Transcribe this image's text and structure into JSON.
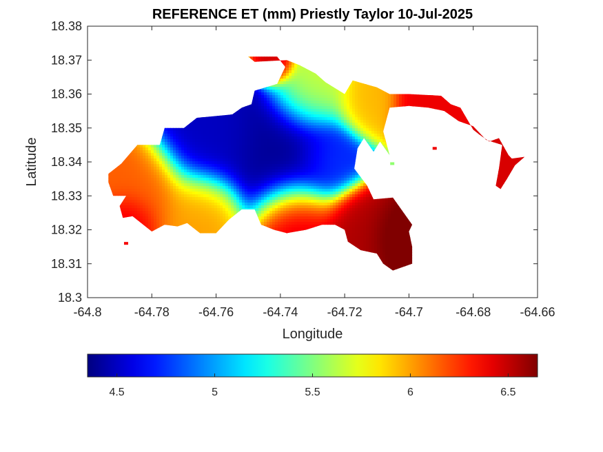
{
  "chart_data": {
    "type": "heatmap",
    "title": "REFERENCE ET (mm) Priestly Taylor 10-Jul-2025",
    "xlabel": "Longitude",
    "ylabel": "Latitude",
    "xlim": [
      -64.8,
      -64.66
    ],
    "ylim": [
      18.3,
      18.38
    ],
    "xticks": [
      -64.8,
      -64.78,
      -64.76,
      -64.74,
      -64.72,
      -64.7,
      -64.68,
      -64.66
    ],
    "xtick_labels": [
      "-64.8",
      "-64.78",
      "-64.76",
      "-64.74",
      "-64.72",
      "-64.7",
      "-64.68",
      "-64.66"
    ],
    "yticks": [
      18.3,
      18.31,
      18.32,
      18.33,
      18.34,
      18.35,
      18.36,
      18.37,
      18.38
    ],
    "ytick_labels": [
      "18.3",
      "18.31",
      "18.32",
      "18.33",
      "18.34",
      "18.35",
      "18.36",
      "18.37",
      "18.38"
    ],
    "colormap": "jet",
    "clim": [
      4.35,
      6.65
    ],
    "colorbar": {
      "orientation": "horizontal",
      "ticks": [
        4.5,
        5,
        5.5,
        6,
        6.5
      ],
      "tick_labels": [
        "4.5",
        "5",
        "5.5",
        "6",
        "6.5"
      ]
    },
    "grid": false,
    "region_outline": [
      [
        -64.7935,
        18.3365
      ],
      [
        -64.7895,
        18.3395
      ],
      [
        -64.7845,
        18.345
      ],
      [
        -64.7775,
        18.345
      ],
      [
        -64.776,
        18.35
      ],
      [
        -64.77,
        18.35
      ],
      [
        -64.766,
        18.353
      ],
      [
        -64.755,
        18.354
      ],
      [
        -64.752,
        18.356
      ],
      [
        -64.749,
        18.357
      ],
      [
        -64.748,
        18.361
      ],
      [
        -64.741,
        18.363
      ],
      [
        -64.7385,
        18.368
      ],
      [
        -64.741,
        18.371
      ],
      [
        -64.75,
        18.371
      ],
      [
        -64.748,
        18.3695
      ],
      [
        -64.738,
        18.37
      ],
      [
        -64.734,
        18.3685
      ],
      [
        -64.729,
        18.366
      ],
      [
        -64.726,
        18.3635
      ],
      [
        -64.72,
        18.36
      ],
      [
        -64.7175,
        18.364
      ],
      [
        -64.71,
        18.362
      ],
      [
        -64.706,
        18.36
      ],
      [
        -64.7,
        18.36
      ],
      [
        -64.69,
        18.3595
      ],
      [
        -64.687,
        18.357
      ],
      [
        -64.684,
        18.356
      ],
      [
        -64.68,
        18.3495
      ],
      [
        -64.678,
        18.348
      ],
      [
        -64.675,
        18.346
      ],
      [
        -64.672,
        18.347
      ],
      [
        -64.669,
        18.342
      ],
      [
        -64.668,
        18.341
      ],
      [
        -64.664,
        18.3415
      ],
      [
        -64.667,
        18.339
      ],
      [
        -64.6695,
        18.335
      ],
      [
        -64.6715,
        18.332
      ],
      [
        -64.673,
        18.333
      ],
      [
        -64.672,
        18.338
      ],
      [
        -64.671,
        18.345
      ],
      [
        -64.676,
        18.3465
      ],
      [
        -64.68,
        18.3505
      ],
      [
        -64.6845,
        18.352
      ],
      [
        -64.689,
        18.355
      ],
      [
        -64.694,
        18.356
      ],
      [
        -64.7,
        18.3565
      ],
      [
        -64.706,
        18.356
      ],
      [
        -64.708,
        18.349
      ],
      [
        -64.706,
        18.342
      ],
      [
        -64.709,
        18.346
      ],
      [
        -64.711,
        18.343
      ],
      [
        -64.714,
        18.347
      ],
      [
        -64.716,
        18.344
      ],
      [
        -64.717,
        18.338
      ],
      [
        -64.713,
        18.333
      ],
      [
        -64.711,
        18.329
      ],
      [
        -64.705,
        18.3295
      ],
      [
        -64.699,
        18.3215
      ],
      [
        -64.7,
        18.3195
      ],
      [
        -64.699,
        18.315
      ],
      [
        -64.699,
        18.31
      ],
      [
        -64.705,
        18.308
      ],
      [
        -64.708,
        18.31
      ],
      [
        -64.71,
        18.313
      ],
      [
        -64.715,
        18.314
      ],
      [
        -64.719,
        18.3165
      ],
      [
        -64.72,
        18.32
      ],
      [
        -64.723,
        18.3215
      ],
      [
        -64.727,
        18.3215
      ],
      [
        -64.732,
        18.32
      ],
      [
        -64.738,
        18.319
      ],
      [
        -64.742,
        18.32
      ],
      [
        -64.746,
        18.3215
      ],
      [
        -64.748,
        18.326
      ],
      [
        -64.752,
        18.326
      ],
      [
        -64.756,
        18.323
      ],
      [
        -64.76,
        18.319
      ],
      [
        -64.765,
        18.319
      ],
      [
        -64.769,
        18.322
      ],
      [
        -64.772,
        18.321
      ],
      [
        -64.776,
        18.3215
      ],
      [
        -64.78,
        18.3195
      ],
      [
        -64.782,
        18.321
      ],
      [
        -64.786,
        18.324
      ],
      [
        -64.789,
        18.3235
      ],
      [
        -64.79,
        18.327
      ],
      [
        -64.788,
        18.33
      ],
      [
        -64.792,
        18.33
      ],
      [
        -64.7935,
        18.334
      ]
    ],
    "islets": [
      [
        -64.788,
        18.316
      ],
      [
        -64.7052,
        18.3395
      ],
      [
        -64.692,
        18.344
      ]
    ],
    "value_centers": [
      {
        "lon": -64.738,
        "lat": 18.3425,
        "value": 4.4,
        "spread": 0.0095
      },
      {
        "lon": -64.762,
        "lat": 18.3465,
        "value": 4.5,
        "spread": 0.008
      },
      {
        "lon": -64.725,
        "lat": 18.341,
        "value": 4.8,
        "spread": 0.005
      },
      {
        "lon": -64.73,
        "lat": 18.36,
        "value": 5.7,
        "spread": 0.006
      },
      {
        "lon": -64.713,
        "lat": 18.357,
        "value": 5.95,
        "spread": 0.005
      },
      {
        "lon": -64.742,
        "lat": 18.369,
        "value": 6.5,
        "spread": 0.003
      },
      {
        "lon": -64.783,
        "lat": 18.332,
        "value": 6.15,
        "spread": 0.007
      },
      {
        "lon": -64.765,
        "lat": 18.326,
        "value": 6.0,
        "spread": 0.006
      },
      {
        "lon": -64.787,
        "lat": 18.323,
        "value": 6.45,
        "spread": 0.004
      },
      {
        "lon": -64.735,
        "lat": 18.323,
        "value": 6.5,
        "spread": 0.006
      },
      {
        "lon": -64.715,
        "lat": 18.321,
        "value": 6.55,
        "spread": 0.006
      },
      {
        "lon": -64.704,
        "lat": 18.319,
        "value": 6.7,
        "spread": 0.0045
      },
      {
        "lon": -64.695,
        "lat": 18.356,
        "value": 6.4,
        "spread": 0.005
      },
      {
        "lon": -64.67,
        "lat": 18.338,
        "value": 6.45,
        "spread": 0.005
      }
    ]
  }
}
